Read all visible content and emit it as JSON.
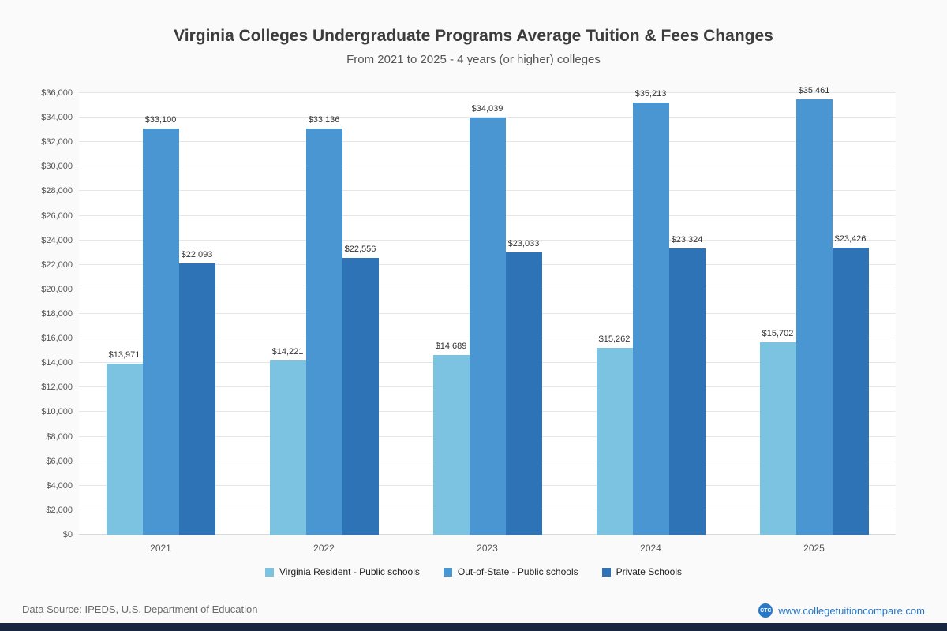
{
  "page": {
    "title": "Virginia Colleges Undergraduate Programs Average Tuition & Fees Changes",
    "subtitle": "From 2021 to 2025 - 4 years (or higher) colleges",
    "footer": {
      "source": "Data Source: IPEDS, U.S. Department of Education",
      "logo_text": "CTC",
      "website": "www.collegetuitioncompare.com"
    }
  },
  "chart_data": {
    "type": "bar",
    "title": "Virginia Colleges Undergraduate Programs Average Tuition & Fees Changes",
    "subtitle": "From 2021 to 2025 - 4 years (or higher) colleges",
    "categories": [
      "2021",
      "2022",
      "2023",
      "2024",
      "2025"
    ],
    "series": [
      {
        "name": "Virginia Resident - Public schools",
        "color": "#7cc3e2",
        "values": [
          13971,
          14221,
          14689,
          15262,
          15702
        ]
      },
      {
        "name": "Out-of-State - Public schools",
        "color": "#4a96d2",
        "values": [
          33100,
          33136,
          34039,
          35213,
          35461
        ]
      },
      {
        "name": "Private Schools",
        "color": "#2e73b5",
        "values": [
          22093,
          22556,
          23033,
          23324,
          23426
        ]
      }
    ],
    "xlabel": "",
    "ylabel": "",
    "ylim": [
      0,
      36000
    ],
    "ytick_step": 2000,
    "grid": true,
    "legend_position": "bottom",
    "value_label_format": "$#,###"
  }
}
